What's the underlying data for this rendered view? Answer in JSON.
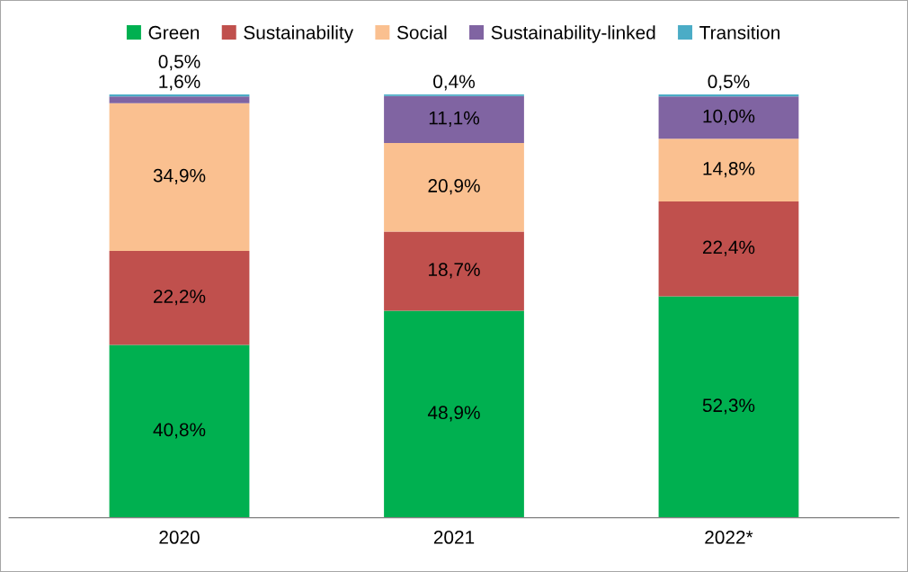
{
  "chart_data": {
    "type": "bar",
    "stacked": true,
    "categories": [
      "2020",
      "2021",
      "2022*"
    ],
    "legend": "top",
    "grid": false,
    "tick_labels": "x",
    "series": [
      {
        "name": "Green",
        "color": "#00b050",
        "values": [
          40.8,
          48.9,
          52.3
        ],
        "value_labels": [
          "40,8%",
          "48,9%",
          "52,3%"
        ]
      },
      {
        "name": "Sustainability",
        "color": "#c0504d",
        "values": [
          22.2,
          18.7,
          22.4
        ],
        "value_labels": [
          "22,2%",
          "18,7%",
          "22,4%"
        ]
      },
      {
        "name": "Social",
        "color": "#fac090",
        "values": [
          34.9,
          20.9,
          14.8
        ],
        "value_labels": [
          "34,9%",
          "20,9%",
          "14,8%"
        ]
      },
      {
        "name": "Sustainability-linked",
        "color": "#8064a2",
        "values": [
          1.6,
          11.1,
          10.0
        ],
        "value_labels": [
          "1,6%",
          "11,1%",
          "10,0%"
        ]
      },
      {
        "name": "Transition",
        "color": "#4bacc6",
        "values": [
          0.5,
          0.4,
          0.5
        ],
        "value_labels": [
          "0,5%",
          "0,4%",
          "0,5%"
        ]
      }
    ]
  }
}
